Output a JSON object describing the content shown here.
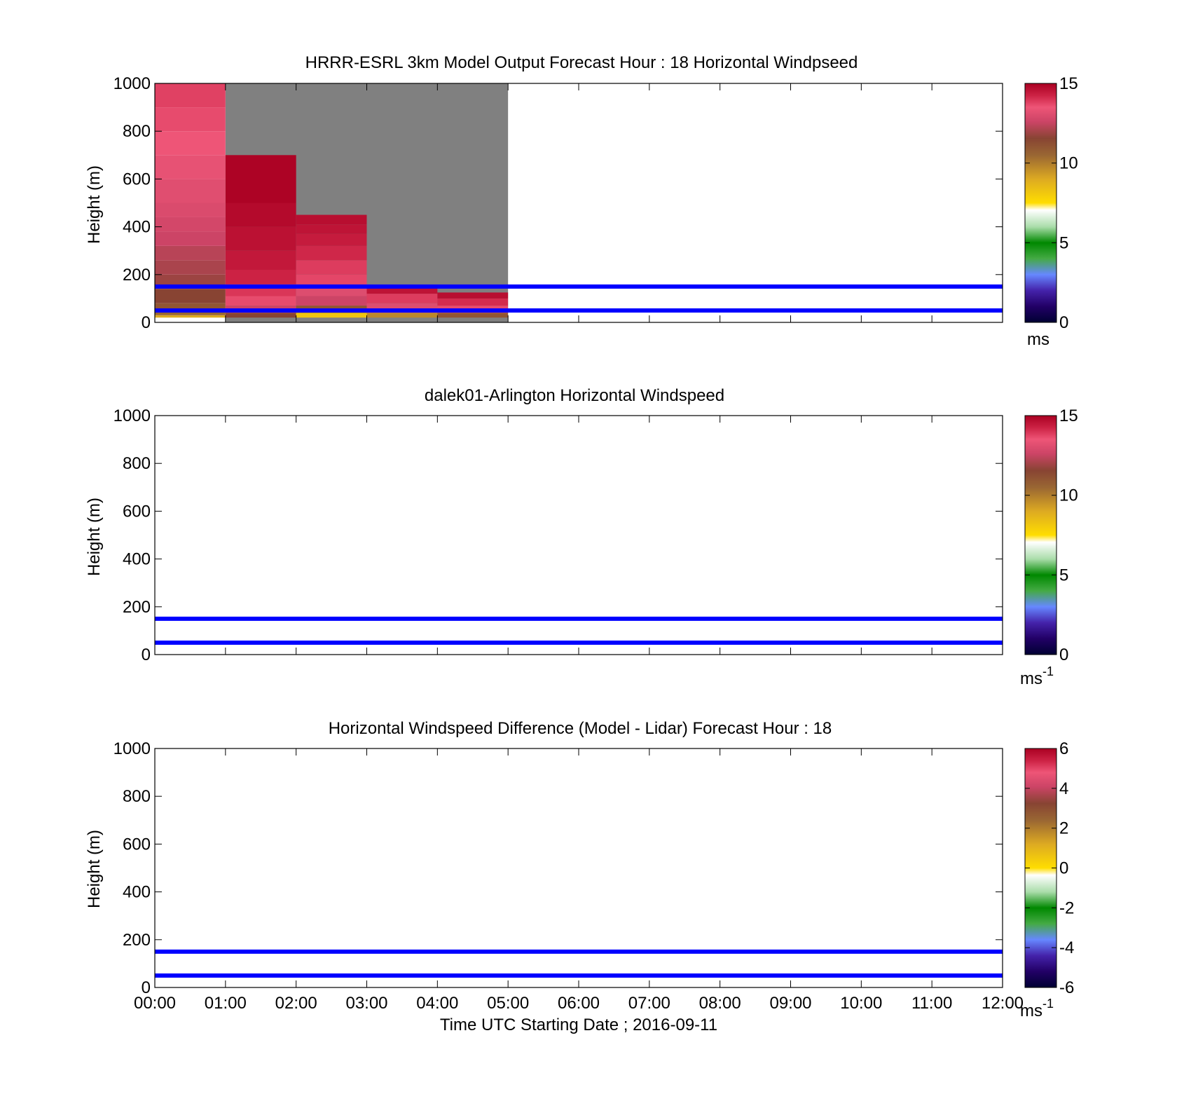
{
  "figure": {
    "xlabel": "Time UTC  Starting Date ; 2016-09-11",
    "time_ticks": [
      "00:00",
      "01:00",
      "02:00",
      "03:00",
      "04:00",
      "05:00",
      "06:00",
      "07:00",
      "08:00",
      "09:00",
      "10:00",
      "11:00",
      "12:00"
    ]
  },
  "chart_data": [
    {
      "type": "heatmap",
      "title": "HRRR-ESRL 3km Model Output   Forecast Hour : 18 Horizontal Windpseed",
      "ylabel": "Height (m)",
      "ylim": [
        0,
        1000
      ],
      "yticks": [
        0,
        200,
        400,
        600,
        800,
        1000
      ],
      "xlim": [
        0,
        12
      ],
      "colorbar": {
        "label": "ms",
        "label_sup": "",
        "range": [
          0,
          15
        ],
        "ticks": [
          "0",
          "5",
          "10",
          "15"
        ],
        "colors": [
          "#000033",
          "#220066",
          "#4422aa",
          "#6688ff",
          "#44aa44",
          "#008800",
          "#aaddaa",
          "#ffffff",
          "#ffdd00",
          "#ddaa22",
          "#996633",
          "#884433",
          "#cc4466",
          "#ee5577",
          "#cc2244",
          "#aa0022"
        ]
      },
      "no_data_region": {
        "x": [
          1,
          5
        ],
        "y": [
          0,
          1000
        ],
        "color": "#808080"
      },
      "reference_lines": [
        {
          "height": 150,
          "color": "#0000ff"
        },
        {
          "height": 50,
          "color": "#0000ff"
        }
      ],
      "columns": [
        {
          "x0": 0,
          "x1": 1,
          "cells": [
            {
              "z0": 20,
              "z1": 30,
              "v": 9.0
            },
            {
              "z0": 30,
              "z1": 50,
              "v": 10.0
            },
            {
              "z0": 50,
              "z1": 80,
              "v": 10.5
            },
            {
              "z0": 80,
              "z1": 140,
              "v": 11.0
            },
            {
              "z0": 140,
              "z1": 200,
              "v": 11.3
            },
            {
              "z0": 200,
              "z1": 260,
              "v": 11.5
            },
            {
              "z0": 260,
              "z1": 320,
              "v": 11.7
            },
            {
              "z0": 320,
              "z1": 380,
              "v": 12.0
            },
            {
              "z0": 380,
              "z1": 440,
              "v": 12.2
            },
            {
              "z0": 440,
              "z1": 500,
              "v": 12.4
            },
            {
              "z0": 500,
              "z1": 600,
              "v": 12.6
            },
            {
              "z0": 600,
              "z1": 700,
              "v": 12.8
            },
            {
              "z0": 700,
              "z1": 800,
              "v": 13.0
            },
            {
              "z0": 800,
              "z1": 900,
              "v": 13.2
            },
            {
              "z0": 900,
              "z1": 1000,
              "v": 13.4
            }
          ]
        },
        {
          "x0": 1,
          "x1": 2,
          "cells": [
            {
              "z0": 20,
              "z1": 40,
              "v": 11.0
            },
            {
              "z0": 40,
              "z1": 70,
              "v": 12.0
            },
            {
              "z0": 70,
              "z1": 110,
              "v": 13.2
            },
            {
              "z0": 110,
              "z1": 160,
              "v": 13.6
            },
            {
              "z0": 160,
              "z1": 220,
              "v": 14.0
            },
            {
              "z0": 220,
              "z1": 300,
              "v": 14.3
            },
            {
              "z0": 300,
              "z1": 400,
              "v": 14.5
            },
            {
              "z0": 400,
              "z1": 500,
              "v": 14.7
            },
            {
              "z0": 500,
              "z1": 700,
              "v": 14.9
            }
          ]
        },
        {
          "x0": 2,
          "x1": 3,
          "cells": [
            {
              "z0": 20,
              "z1": 40,
              "v": 8.5
            },
            {
              "z0": 40,
              "z1": 70,
              "v": 10.5
            },
            {
              "z0": 70,
              "z1": 110,
              "v": 12.0
            },
            {
              "z0": 110,
              "z1": 160,
              "v": 12.5
            },
            {
              "z0": 160,
              "z1": 200,
              "v": 13.3
            },
            {
              "z0": 200,
              "z1": 260,
              "v": 13.5
            },
            {
              "z0": 260,
              "z1": 320,
              "v": 13.9
            },
            {
              "z0": 320,
              "z1": 370,
              "v": 14.2
            },
            {
              "z0": 370,
              "z1": 410,
              "v": 14.4
            },
            {
              "z0": 410,
              "z1": 450,
              "v": 14.6
            }
          ]
        },
        {
          "x0": 3,
          "x1": 4,
          "cells": [
            {
              "z0": 20,
              "z1": 40,
              "v": 9.5
            },
            {
              "z0": 40,
              "z1": 80,
              "v": 12.5
            },
            {
              "z0": 80,
              "z1": 120,
              "v": 13.5
            },
            {
              "z0": 120,
              "z1": 150,
              "v": 14.4
            }
          ]
        },
        {
          "x0": 4,
          "x1": 5,
          "cells": [
            {
              "z0": 20,
              "z1": 40,
              "v": 10.5
            },
            {
              "z0": 40,
              "z1": 70,
              "v": 13.2
            },
            {
              "z0": 70,
              "z1": 100,
              "v": 13.8
            },
            {
              "z0": 100,
              "z1": 125,
              "v": 14.6
            }
          ]
        }
      ]
    },
    {
      "type": "heatmap",
      "title": "dalek01-Arlington  Horizontal Windspeed",
      "ylabel": "Height (m)",
      "ylim": [
        0,
        1000
      ],
      "yticks": [
        0,
        200,
        400,
        600,
        800,
        1000
      ],
      "xlim": [
        0,
        12
      ],
      "colorbar": {
        "label": "ms",
        "label_sup": "-1",
        "range": [
          0,
          15
        ],
        "ticks": [
          "0",
          "5",
          "10",
          "15"
        ],
        "colors": [
          "#000033",
          "#220066",
          "#4422aa",
          "#6688ff",
          "#44aa44",
          "#008800",
          "#aaddaa",
          "#ffffff",
          "#ffdd00",
          "#ddaa22",
          "#996633",
          "#884433",
          "#cc4466",
          "#ee5577",
          "#cc2244",
          "#aa0022"
        ]
      },
      "reference_lines": [
        {
          "height": 150,
          "color": "#0000ff"
        },
        {
          "height": 50,
          "color": "#0000ff"
        }
      ],
      "columns": []
    },
    {
      "type": "heatmap",
      "title": "Horizontal Windspeed Difference (Model - Lidar) Forecast Hour : 18",
      "ylabel": "Height (m)",
      "ylim": [
        0,
        1000
      ],
      "yticks": [
        0,
        200,
        400,
        600,
        800,
        1000
      ],
      "xlim": [
        0,
        12
      ],
      "colorbar": {
        "label": "ms",
        "label_sup": "-1",
        "range": [
          -6,
          6
        ],
        "ticks": [
          "-6",
          "-4",
          "-2",
          "0",
          "2",
          "4",
          "6"
        ],
        "colors": [
          "#000033",
          "#220066",
          "#4422aa",
          "#6688ff",
          "#44aa44",
          "#008800",
          "#aaddaa",
          "#ffffff",
          "#ffdd00",
          "#ddaa22",
          "#996633",
          "#884433",
          "#cc4466",
          "#ee5577",
          "#cc2244",
          "#aa0022"
        ]
      },
      "reference_lines": [
        {
          "height": 150,
          "color": "#0000ff"
        },
        {
          "height": 50,
          "color": "#0000ff"
        }
      ],
      "columns": []
    }
  ]
}
